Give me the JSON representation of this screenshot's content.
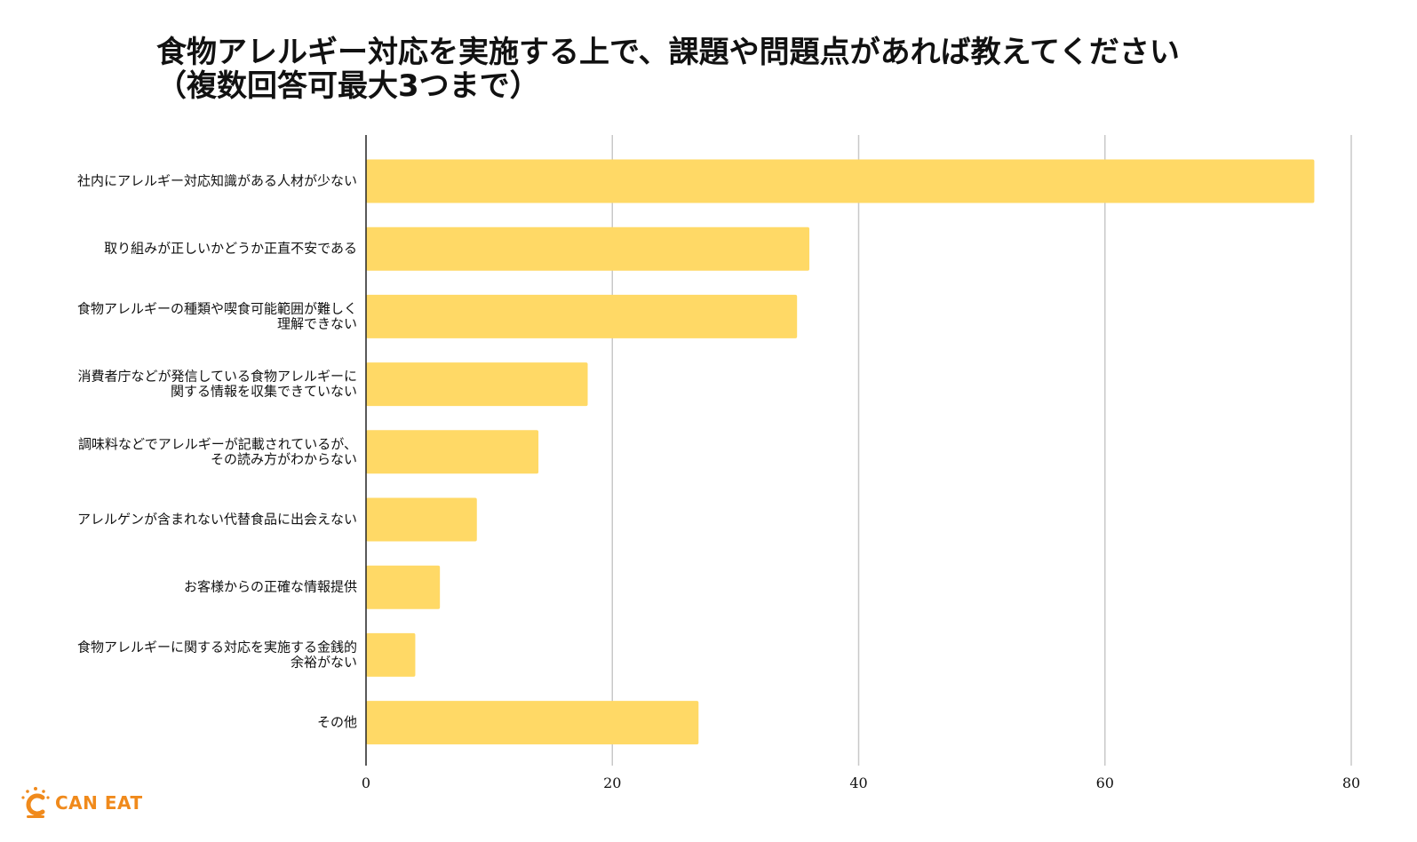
{
  "chart_data": {
    "type": "bar",
    "orientation": "horizontal",
    "title_lines": [
      "食物アレルギー対応を実施する上で、課題や問題点があれば教えてください",
      "（複数回答可最大3つまで）"
    ],
    "categories": [
      [
        "社内にアレルギー対応知識がある人材が少ない"
      ],
      [
        "取り組みが正しいかどうか正直不安である"
      ],
      [
        "食物アレルギーの種類や喫食可能範囲が難しく",
        "理解できない"
      ],
      [
        "消費者庁などが発信している食物アレルギーに",
        "関する情報を収集できていない"
      ],
      [
        "調味料などでアレルギーが記載されているが、",
        "その読み方がわからない"
      ],
      [
        "アレルゲンが含まれない代替食品に出会えない"
      ],
      [
        "お客様からの正確な情報提供"
      ],
      [
        "食物アレルギーに関する対応を実施する金銭的",
        "余裕がない"
      ],
      [
        "その他"
      ]
    ],
    "values": [
      77,
      36,
      35,
      18,
      14,
      9,
      6,
      4,
      27
    ],
    "xlim": [
      0,
      80
    ],
    "xticks": [
      0,
      20,
      40,
      60,
      80
    ],
    "grid": true,
    "bar_color": "#ffd966"
  },
  "logo": {
    "text": "CAN EAT",
    "color": "#f08a1c"
  }
}
